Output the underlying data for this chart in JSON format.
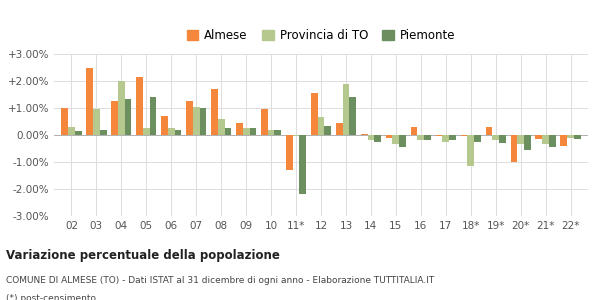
{
  "categories": [
    "02",
    "03",
    "04",
    "05",
    "06",
    "07",
    "08",
    "09",
    "10",
    "11*",
    "12",
    "13",
    "14",
    "15",
    "16",
    "17",
    "18*",
    "19*",
    "20*",
    "21*",
    "22*"
  ],
  "almese": [
    0.01,
    0.025,
    0.0125,
    0.0215,
    0.007,
    0.0125,
    0.017,
    0.0045,
    0.0095,
    -0.013,
    0.0155,
    0.0045,
    0.0002,
    -0.001,
    0.003,
    -0.0005,
    -0.0005,
    0.0028,
    -0.01,
    -0.0015,
    -0.004
  ],
  "provincia": [
    0.003,
    0.0095,
    0.02,
    0.0025,
    0.0025,
    0.0105,
    0.006,
    0.0025,
    0.002,
    -0.0005,
    0.0065,
    0.019,
    -0.002,
    -0.0035,
    -0.002,
    -0.0025,
    -0.0115,
    -0.002,
    -0.0035,
    -0.0035,
    -0.001
  ],
  "piemonte": [
    0.0015,
    0.002,
    0.0135,
    0.014,
    0.002,
    0.01,
    0.0025,
    0.0025,
    0.002,
    -0.022,
    0.0035,
    0.014,
    -0.0025,
    -0.0045,
    -0.002,
    -0.002,
    -0.0025,
    -0.003,
    -0.0055,
    -0.0045,
    -0.0015
  ],
  "color_almese": "#f4873b",
  "color_provincia": "#b5c98e",
  "color_piemonte": "#6b8f5e",
  "title": "Variazione percentuale della popolazione",
  "subtitle": "COMUNE DI ALMESE (TO) - Dati ISTAT al 31 dicembre di ogni anno - Elaborazione TUTTITALIA.IT",
  "footnote": "(*) post-censimento",
  "legend_labels": [
    "Almese",
    "Provincia di TO",
    "Piemonte"
  ],
  "ylim": [
    -0.03,
    0.03
  ],
  "yticks": [
    -0.03,
    -0.02,
    -0.01,
    0.0,
    0.01,
    0.02,
    0.03
  ],
  "ytick_labels": [
    "-3.00%",
    "-2.00%",
    "-1.00%",
    "0.00%",
    "+1.00%",
    "+2.00%",
    "+3.00%"
  ],
  "bg_color": "#ffffff",
  "grid_color": "#dddddd"
}
